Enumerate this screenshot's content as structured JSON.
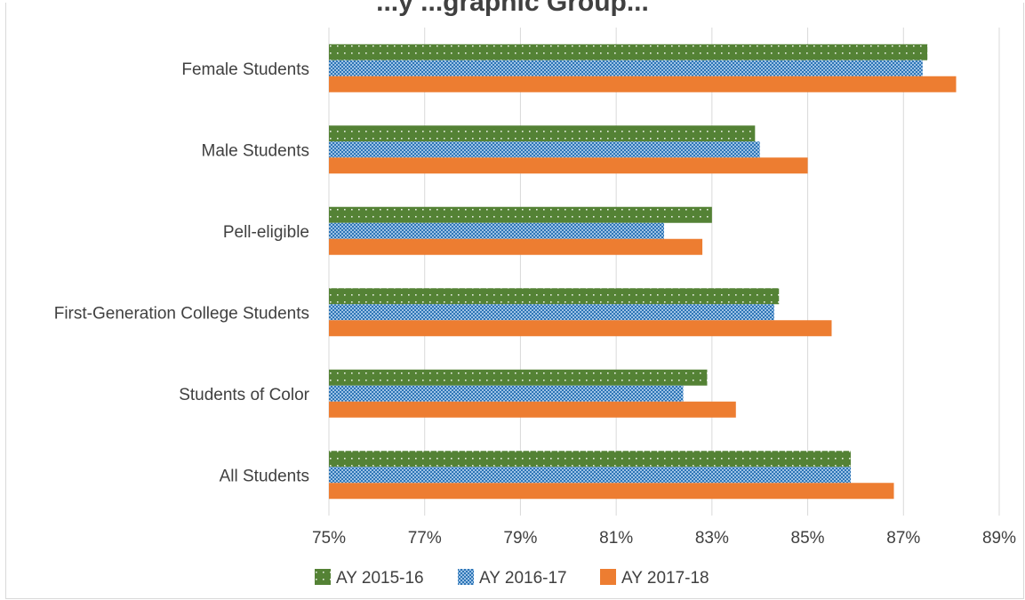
{
  "chart_data": {
    "type": "bar",
    "orientation": "horizontal",
    "title": "...y ...graphic Group...",
    "categories": [
      "Female Students",
      "Male Students",
      "Pell-eligible",
      "First-Generation College Students",
      "Students of Color",
      "All Students"
    ],
    "series": [
      {
        "name": "AY 2015-16",
        "color": "#548235",
        "pattern": "dotted",
        "values": [
          87.5,
          83.9,
          83.0,
          84.4,
          82.9,
          85.9
        ]
      },
      {
        "name": "AY 2016-17",
        "color": "#2e75b6",
        "pattern": "checked",
        "values": [
          87.4,
          84.0,
          82.0,
          84.3,
          82.4,
          85.9
        ]
      },
      {
        "name": "AY 2017-18",
        "color": "#ed7d31",
        "pattern": "solid",
        "values": [
          88.1,
          85.0,
          82.8,
          85.5,
          83.5,
          86.8
        ]
      }
    ],
    "xlim": [
      75,
      89
    ],
    "xticks": [
      75,
      77,
      79,
      81,
      83,
      85,
      87,
      89
    ],
    "xtick_labels": [
      "75%",
      "77%",
      "79%",
      "81%",
      "83%",
      "85%",
      "87%",
      "89%"
    ],
    "grid": true,
    "legend_position": "bottom"
  }
}
